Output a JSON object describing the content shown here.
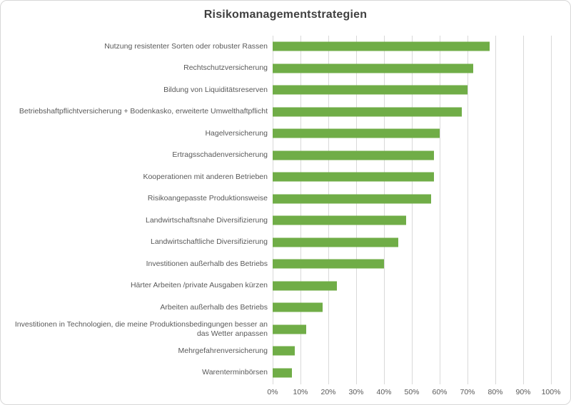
{
  "chart_data": {
    "type": "bar",
    "orientation": "horizontal",
    "title": "Risikomanagementstrategien",
    "categories": [
      "Nutzung resistenter Sorten oder robuster Rassen",
      "Rechtschutzversicherung",
      "Bildung von Liquiditätsreserven",
      "Betriebshaftpflichtversicherung + Bodenkasko, erweiterte Umwelthaftpflicht",
      "Hagelversicherung",
      "Ertragsschadenversicherung",
      "Kooperationen mit anderen Betrieben",
      "Risikoangepasste Produktionsweise",
      "Landwirtschaftsnahe Diversifizierung",
      "Landwirtschaftliche Diversifizierung",
      "Investitionen außerhalb des Betriebs",
      "Härter Arbeiten /private Ausgaben kürzen",
      "Arbeiten außerhalb des Betriebs",
      "Investitionen in Technologien, die meine Produktionsbedingungen besser an das Wetter anpassen",
      "Mehrgefahrenversicherung",
      "Warenterminbörsen"
    ],
    "values": [
      78,
      72,
      70,
      68,
      60,
      58,
      58,
      57,
      48,
      45,
      40,
      23,
      18,
      12,
      8,
      7
    ],
    "unit": "%",
    "xlim": [
      0,
      100
    ],
    "x_ticks": [
      "0%",
      "10%",
      "20%",
      "30%",
      "40%",
      "50%",
      "60%",
      "70%",
      "80%",
      "90%",
      "100%"
    ],
    "grid": true,
    "legend": false,
    "bar_color": "#70AD47",
    "gridline_color": "#D9D9D9",
    "label_color": "#595959",
    "title_color": "#404040"
  }
}
